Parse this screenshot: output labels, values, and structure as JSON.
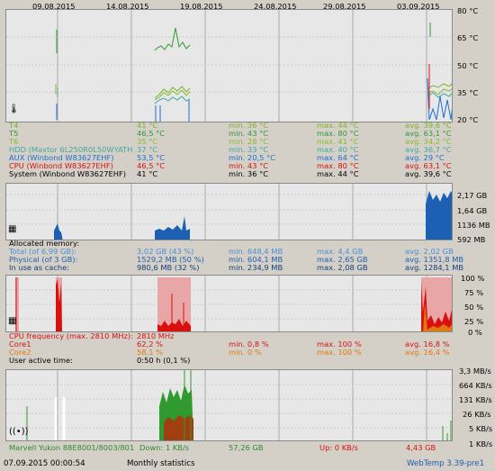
{
  "dates": [
    "09.08.2015",
    "14.08.2015",
    "19.08.2015",
    "24.08.2015",
    "29.08.2015",
    "03.09.2015"
  ],
  "temp": {
    "axis": [
      "80 °C",
      "65 °C",
      "50 °C",
      "35 °C",
      "20 °C"
    ],
    "rows": [
      {
        "name": "T4",
        "cur": "41 °C",
        "min": "min. 36 °C",
        "max": "max. 44 °C",
        "avg": "avg. 39,6 °C",
        "color": "#7cb32a"
      },
      {
        "name": "T5",
        "cur": "46,5 °C",
        "min": "min. 43 °C",
        "max": "max. 80 °C",
        "avg": "avg. 63,1 °C",
        "color": "#2f9a2f"
      },
      {
        "name": "T6",
        "cur": "35 °C",
        "min": "min. 28 °C",
        "max": "max. 41 °C",
        "avg": "avg. 34,2 °C",
        "color": "#8ab82e"
      },
      {
        "name": "HDD (Maxtor 6L250R0L50WYATH",
        "cur": "37 °C",
        "min": "min. 33 °C",
        "max": "max. 40 °C",
        "avg": "avg. 36,7 °C",
        "color": "#3caaa0"
      },
      {
        "name": "AUX (Winbond W83627EHF)",
        "cur": "53,5 °C",
        "min": "min. 20,5 °C",
        "max": "max. 64 °C",
        "avg": "avg. 29 °C",
        "color": "#1d6ecf"
      },
      {
        "name": "CPU (Winbond W83627EHF)",
        "cur": "46,5 °C",
        "min": "min. 43 °C",
        "max": "max. 80 °C",
        "avg": "avg. 63,1 °C",
        "color": "#d81010"
      },
      {
        "name": "System (Winbond W83627EHF)",
        "cur": "41 °C",
        "min": "min. 36 °C",
        "max": "max. 44 °C",
        "avg": "avg. 39,6 °C",
        "color": "#000000"
      }
    ]
  },
  "mem": {
    "axis": [
      "2,17 GB",
      "1,64 GB",
      "1136 MB",
      "592 MB"
    ],
    "title": "Allocated memory:",
    "rows": [
      {
        "name": "Total (of 6,99 GB):",
        "cur": "3,02 GB (43 %)",
        "min": "min. 648,4 MB",
        "max": "max. 4,4 GB",
        "avg": "avg. 2,02 GB",
        "color": "#4a8fd6"
      },
      {
        "name": "Physical (of 3 GB):",
        "cur": "1529,2 MB (50 %)",
        "min": "min. 604,1 MB",
        "max": "max. 2,65 GB",
        "avg": "avg. 1351,8 MB",
        "color": "#1d5fb3"
      },
      {
        "name": "In use as cache:",
        "cur": "980,6 MB (32 %)",
        "min": "min. 234,9 MB",
        "max": "max. 2,08 GB",
        "avg": "avg. 1284,1 MB",
        "color": "#123f7a"
      }
    ]
  },
  "cpu": {
    "axis": [
      "100 %",
      "75 %",
      "50 %",
      "25 %",
      "0 %"
    ],
    "freq_label": "CPU frequency (max. 2810 MHz):",
    "freq_value": "2810 MHz",
    "rows": [
      {
        "name": "Core1",
        "cur": "62,2 %",
        "min": "min. 0,8 %",
        "max": "max. 100 %",
        "avg": "avg. 16,8 %",
        "color": "#d81010"
      },
      {
        "name": "Core2",
        "cur": "58,1 %",
        "min": "min. 0 %",
        "max": "max. 100 %",
        "avg": "avg. 16,4 %",
        "color": "#e07a10"
      }
    ],
    "user_active_label": "User active time:",
    "user_active_value": "0:50 h (0,1 %)"
  },
  "net": {
    "axis": [
      "3,3 MB/s",
      "664 KB/s",
      "131 KB/s",
      "26 KB/s",
      "5 KB/s",
      "1 KB/s"
    ],
    "adapter": "Marvell Yukon 88E8001/8003/801",
    "down": "Down: 1 KB/s",
    "down_total": "57,26 GB",
    "up": "Up: 0 KB/s",
    "up_total": "4,43 GB"
  },
  "status": {
    "timestamp": "07.09.2015 00:00:54",
    "mode": "Monthly statistics",
    "app": "WebTemp 3.39-pre1"
  }
}
